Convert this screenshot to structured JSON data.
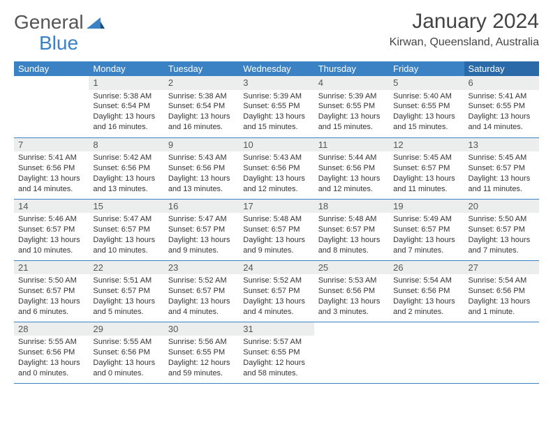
{
  "brand": {
    "part1": "General",
    "part2": "Blue"
  },
  "header": {
    "month_title": "January 2024",
    "location": "Kirwan, Queensland, Australia"
  },
  "colors": {
    "header_bg": "#3b82c4",
    "header_bg_sat": "#2a6aa8",
    "daynum_bg": "#eceded",
    "row_border": "#3b82c4",
    "text": "#333333",
    "logo_gray": "#555555",
    "logo_blue": "#3b82c4"
  },
  "weekdays": [
    "Sunday",
    "Monday",
    "Tuesday",
    "Wednesday",
    "Thursday",
    "Friday",
    "Saturday"
  ],
  "weeks": [
    [
      {
        "n": "",
        "sr": "",
        "ss": "",
        "dl": ""
      },
      {
        "n": "1",
        "sr": "Sunrise: 5:38 AM",
        "ss": "Sunset: 6:54 PM",
        "dl": "Daylight: 13 hours and 16 minutes."
      },
      {
        "n": "2",
        "sr": "Sunrise: 5:38 AM",
        "ss": "Sunset: 6:54 PM",
        "dl": "Daylight: 13 hours and 16 minutes."
      },
      {
        "n": "3",
        "sr": "Sunrise: 5:39 AM",
        "ss": "Sunset: 6:55 PM",
        "dl": "Daylight: 13 hours and 15 minutes."
      },
      {
        "n": "4",
        "sr": "Sunrise: 5:39 AM",
        "ss": "Sunset: 6:55 PM",
        "dl": "Daylight: 13 hours and 15 minutes."
      },
      {
        "n": "5",
        "sr": "Sunrise: 5:40 AM",
        "ss": "Sunset: 6:55 PM",
        "dl": "Daylight: 13 hours and 15 minutes."
      },
      {
        "n": "6",
        "sr": "Sunrise: 5:41 AM",
        "ss": "Sunset: 6:55 PM",
        "dl": "Daylight: 13 hours and 14 minutes."
      }
    ],
    [
      {
        "n": "7",
        "sr": "Sunrise: 5:41 AM",
        "ss": "Sunset: 6:56 PM",
        "dl": "Daylight: 13 hours and 14 minutes."
      },
      {
        "n": "8",
        "sr": "Sunrise: 5:42 AM",
        "ss": "Sunset: 6:56 PM",
        "dl": "Daylight: 13 hours and 13 minutes."
      },
      {
        "n": "9",
        "sr": "Sunrise: 5:43 AM",
        "ss": "Sunset: 6:56 PM",
        "dl": "Daylight: 13 hours and 13 minutes."
      },
      {
        "n": "10",
        "sr": "Sunrise: 5:43 AM",
        "ss": "Sunset: 6:56 PM",
        "dl": "Daylight: 13 hours and 12 minutes."
      },
      {
        "n": "11",
        "sr": "Sunrise: 5:44 AM",
        "ss": "Sunset: 6:56 PM",
        "dl": "Daylight: 13 hours and 12 minutes."
      },
      {
        "n": "12",
        "sr": "Sunrise: 5:45 AM",
        "ss": "Sunset: 6:57 PM",
        "dl": "Daylight: 13 hours and 11 minutes."
      },
      {
        "n": "13",
        "sr": "Sunrise: 5:45 AM",
        "ss": "Sunset: 6:57 PM",
        "dl": "Daylight: 13 hours and 11 minutes."
      }
    ],
    [
      {
        "n": "14",
        "sr": "Sunrise: 5:46 AM",
        "ss": "Sunset: 6:57 PM",
        "dl": "Daylight: 13 hours and 10 minutes."
      },
      {
        "n": "15",
        "sr": "Sunrise: 5:47 AM",
        "ss": "Sunset: 6:57 PM",
        "dl": "Daylight: 13 hours and 10 minutes."
      },
      {
        "n": "16",
        "sr": "Sunrise: 5:47 AM",
        "ss": "Sunset: 6:57 PM",
        "dl": "Daylight: 13 hours and 9 minutes."
      },
      {
        "n": "17",
        "sr": "Sunrise: 5:48 AM",
        "ss": "Sunset: 6:57 PM",
        "dl": "Daylight: 13 hours and 9 minutes."
      },
      {
        "n": "18",
        "sr": "Sunrise: 5:48 AM",
        "ss": "Sunset: 6:57 PM",
        "dl": "Daylight: 13 hours and 8 minutes."
      },
      {
        "n": "19",
        "sr": "Sunrise: 5:49 AM",
        "ss": "Sunset: 6:57 PM",
        "dl": "Daylight: 13 hours and 7 minutes."
      },
      {
        "n": "20",
        "sr": "Sunrise: 5:50 AM",
        "ss": "Sunset: 6:57 PM",
        "dl": "Daylight: 13 hours and 7 minutes."
      }
    ],
    [
      {
        "n": "21",
        "sr": "Sunrise: 5:50 AM",
        "ss": "Sunset: 6:57 PM",
        "dl": "Daylight: 13 hours and 6 minutes."
      },
      {
        "n": "22",
        "sr": "Sunrise: 5:51 AM",
        "ss": "Sunset: 6:57 PM",
        "dl": "Daylight: 13 hours and 5 minutes."
      },
      {
        "n": "23",
        "sr": "Sunrise: 5:52 AM",
        "ss": "Sunset: 6:57 PM",
        "dl": "Daylight: 13 hours and 4 minutes."
      },
      {
        "n": "24",
        "sr": "Sunrise: 5:52 AM",
        "ss": "Sunset: 6:57 PM",
        "dl": "Daylight: 13 hours and 4 minutes."
      },
      {
        "n": "25",
        "sr": "Sunrise: 5:53 AM",
        "ss": "Sunset: 6:56 PM",
        "dl": "Daylight: 13 hours and 3 minutes."
      },
      {
        "n": "26",
        "sr": "Sunrise: 5:54 AM",
        "ss": "Sunset: 6:56 PM",
        "dl": "Daylight: 13 hours and 2 minutes."
      },
      {
        "n": "27",
        "sr": "Sunrise: 5:54 AM",
        "ss": "Sunset: 6:56 PM",
        "dl": "Daylight: 13 hours and 1 minute."
      }
    ],
    [
      {
        "n": "28",
        "sr": "Sunrise: 5:55 AM",
        "ss": "Sunset: 6:56 PM",
        "dl": "Daylight: 13 hours and 0 minutes."
      },
      {
        "n": "29",
        "sr": "Sunrise: 5:55 AM",
        "ss": "Sunset: 6:56 PM",
        "dl": "Daylight: 13 hours and 0 minutes."
      },
      {
        "n": "30",
        "sr": "Sunrise: 5:56 AM",
        "ss": "Sunset: 6:55 PM",
        "dl": "Daylight: 12 hours and 59 minutes."
      },
      {
        "n": "31",
        "sr": "Sunrise: 5:57 AM",
        "ss": "Sunset: 6:55 PM",
        "dl": "Daylight: 12 hours and 58 minutes."
      },
      {
        "n": "",
        "sr": "",
        "ss": "",
        "dl": ""
      },
      {
        "n": "",
        "sr": "",
        "ss": "",
        "dl": ""
      },
      {
        "n": "",
        "sr": "",
        "ss": "",
        "dl": ""
      }
    ]
  ]
}
